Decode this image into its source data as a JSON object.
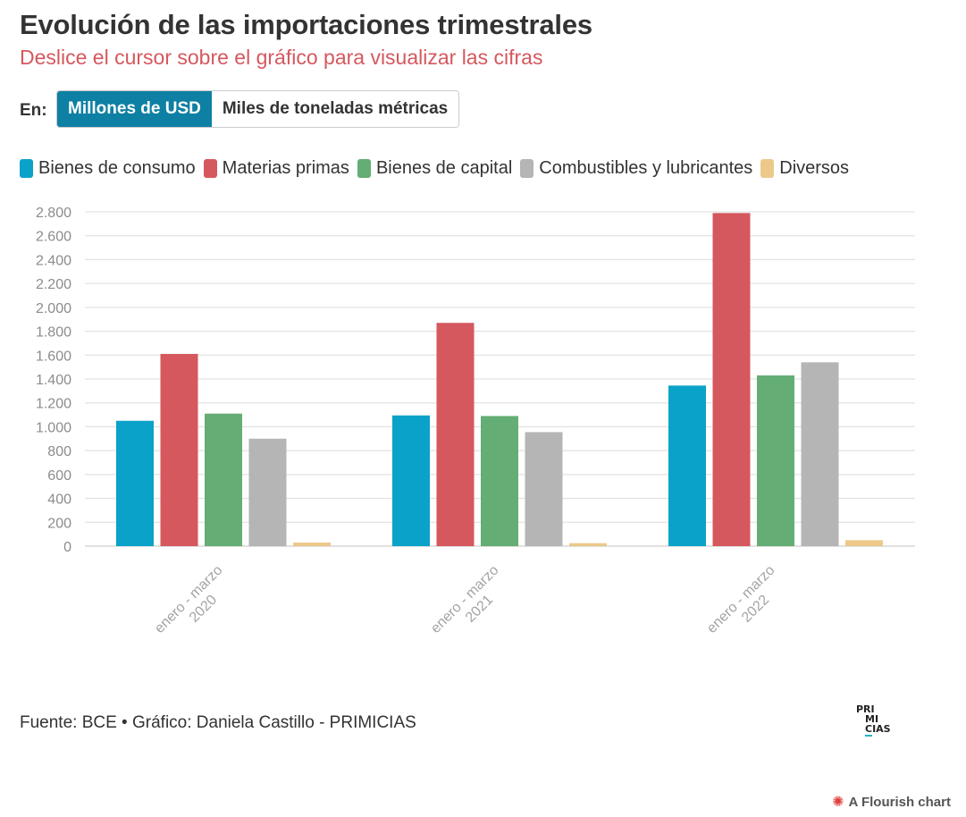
{
  "header": {
    "title": "Evolución de las importaciones trimestrales",
    "subtitle": "Deslice el cursor sobre el gráfico para visualizar las cifras"
  },
  "unit_toggle": {
    "label": "En:",
    "options": [
      "Millones de USD",
      "Miles de toneladas métricas"
    ],
    "selected": "Millones de USD"
  },
  "colors": {
    "bienes_consumo": "#0aa2c8",
    "materias_primas": "#d5585e",
    "bienes_capital": "#64ad74",
    "combustibles": "#b5b5b5",
    "diversos": "#ecc98a",
    "accent": "#0e80a3"
  },
  "chart_data": {
    "type": "bar",
    "title": "Evolución de las importaciones trimestrales",
    "categories": [
      [
        "enero - marzo",
        "2020"
      ],
      [
        "enero - marzo",
        "2021"
      ],
      [
        "enero - marzo",
        "2022"
      ]
    ],
    "series": [
      {
        "name": "Bienes de consumo",
        "color": "#0aa2c8",
        "values": [
          1050,
          1095,
          1345
        ]
      },
      {
        "name": "Materias primas",
        "color": "#d5585e",
        "values": [
          1610,
          1870,
          2790
        ]
      },
      {
        "name": "Bienes de capital",
        "color": "#64ad74",
        "values": [
          1110,
          1090,
          1430
        ]
      },
      {
        "name": "Combustibles y lubricantes",
        "color": "#b5b5b5",
        "values": [
          900,
          955,
          1540
        ]
      },
      {
        "name": "Diversos",
        "color": "#ecc98a",
        "values": [
          30,
          25,
          50
        ]
      }
    ],
    "ylim": [
      0,
      2800
    ],
    "yticks": [
      0,
      200,
      400,
      600,
      800,
      1000,
      1200,
      1400,
      1600,
      1800,
      2000,
      2200,
      2400,
      2600,
      2800
    ],
    "ytick_labels": [
      "0",
      "200",
      "400",
      "600",
      "800",
      "1.000",
      "1.200",
      "1.400",
      "1.600",
      "1.800",
      "2.000",
      "2.200",
      "2.400",
      "2.600",
      "2.800"
    ],
    "xlabel": "",
    "ylabel": "",
    "grid": true,
    "legend": "top-left"
  },
  "footer": {
    "source": "Fuente: BCE • Gráfico: Daniela Castillo - PRIMICIAS",
    "logo_lines": [
      "PRI",
      "MI",
      "CIAS"
    ],
    "credit": "A Flourish chart",
    "credit_icon": "flourish-flower-icon"
  }
}
